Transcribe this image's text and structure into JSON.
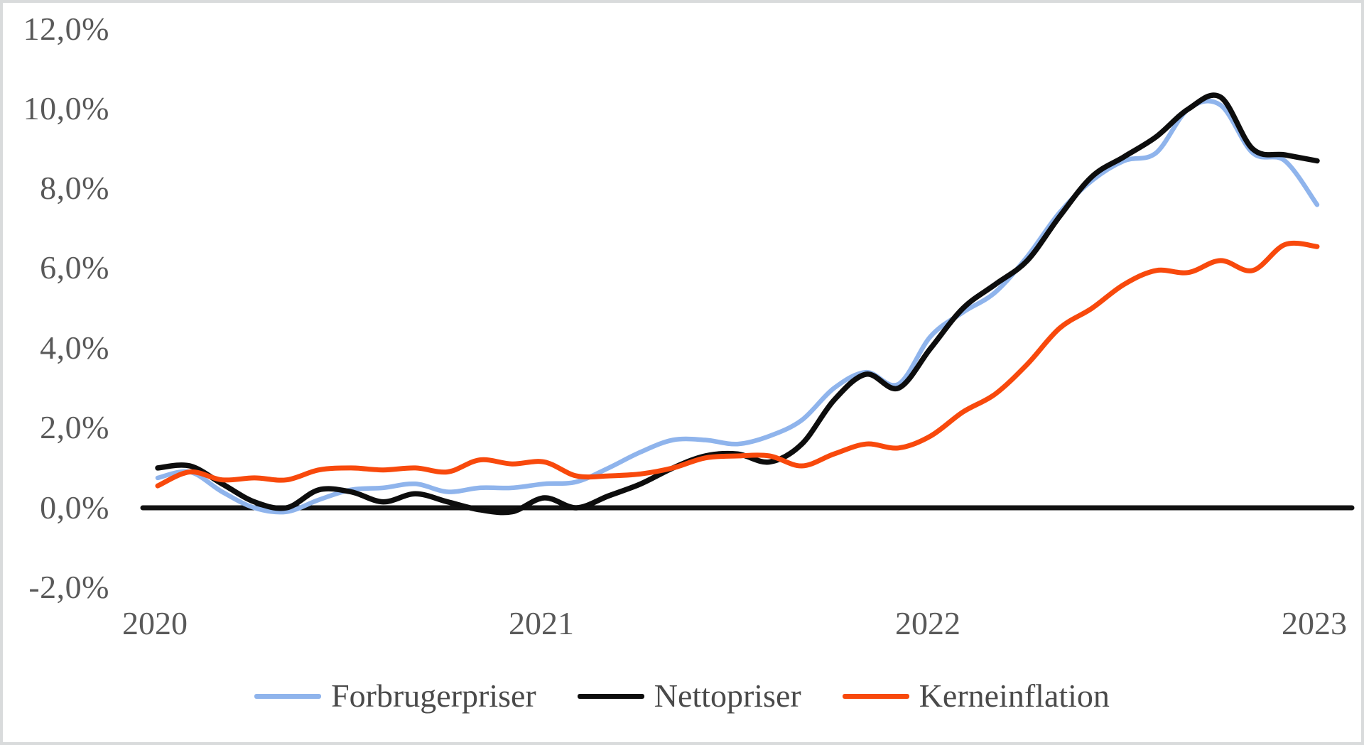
{
  "chart_data": {
    "type": "line",
    "title": "",
    "x_unit": "month",
    "x": [
      "2020-01",
      "2020-02",
      "2020-03",
      "2020-04",
      "2020-05",
      "2020-06",
      "2020-07",
      "2020-08",
      "2020-09",
      "2020-10",
      "2020-11",
      "2020-12",
      "2021-01",
      "2021-02",
      "2021-03",
      "2021-04",
      "2021-05",
      "2021-06",
      "2021-07",
      "2021-08",
      "2021-09",
      "2021-10",
      "2021-11",
      "2021-12",
      "2022-01",
      "2022-02",
      "2022-03",
      "2022-04",
      "2022-05",
      "2022-06",
      "2022-07",
      "2022-08",
      "2022-09",
      "2022-10",
      "2022-11",
      "2022-12",
      "2023-01"
    ],
    "series": [
      {
        "name": "Forbrugerpriser",
        "color": "#8FB4EC",
        "values": [
          0.75,
          0.9,
          0.4,
          0.0,
          -0.1,
          0.2,
          0.45,
          0.5,
          0.6,
          0.4,
          0.5,
          0.5,
          0.6,
          0.65,
          1.0,
          1.4,
          1.7,
          1.7,
          1.6,
          1.8,
          2.2,
          3.0,
          3.4,
          3.1,
          4.3,
          4.9,
          5.4,
          6.3,
          7.4,
          8.2,
          8.7,
          8.9,
          10.0,
          10.1,
          8.9,
          8.7,
          7.6
        ]
      },
      {
        "name": "Nettopriser",
        "color": "#0D0D0D",
        "values": [
          1.0,
          1.05,
          0.6,
          0.15,
          0.0,
          0.45,
          0.4,
          0.15,
          0.35,
          0.15,
          -0.05,
          -0.1,
          0.25,
          0.0,
          0.3,
          0.6,
          1.0,
          1.3,
          1.35,
          1.15,
          1.6,
          2.7,
          3.35,
          3.0,
          4.0,
          5.0,
          5.6,
          6.2,
          7.3,
          8.3,
          8.8,
          9.3,
          10.0,
          10.3,
          9.0,
          8.85,
          8.7
        ]
      },
      {
        "name": "Kerneinflation",
        "color": "#F8490C",
        "values": [
          0.55,
          0.9,
          0.7,
          0.75,
          0.7,
          0.95,
          1.0,
          0.95,
          1.0,
          0.9,
          1.2,
          1.1,
          1.15,
          0.8,
          0.8,
          0.85,
          1.0,
          1.25,
          1.3,
          1.3,
          1.05,
          1.35,
          1.6,
          1.5,
          1.8,
          2.4,
          2.85,
          3.6,
          4.5,
          5.0,
          5.6,
          5.95,
          5.9,
          6.2,
          5.95,
          6.6,
          6.55
        ]
      }
    ],
    "y_ticks": [
      "12,0%",
      "10,0%",
      "8,0%",
      "6,0%",
      "4,0%",
      "2,0%",
      "0,0%",
      "-2,0%"
    ],
    "x_ticks": [
      "2020",
      "2021",
      "2022",
      "2023"
    ],
    "ylim": [
      -2,
      12
    ],
    "grid": false,
    "zero_axis": true,
    "legend_position": "bottom",
    "text_color": "#595959",
    "smoothed_lines": true
  }
}
